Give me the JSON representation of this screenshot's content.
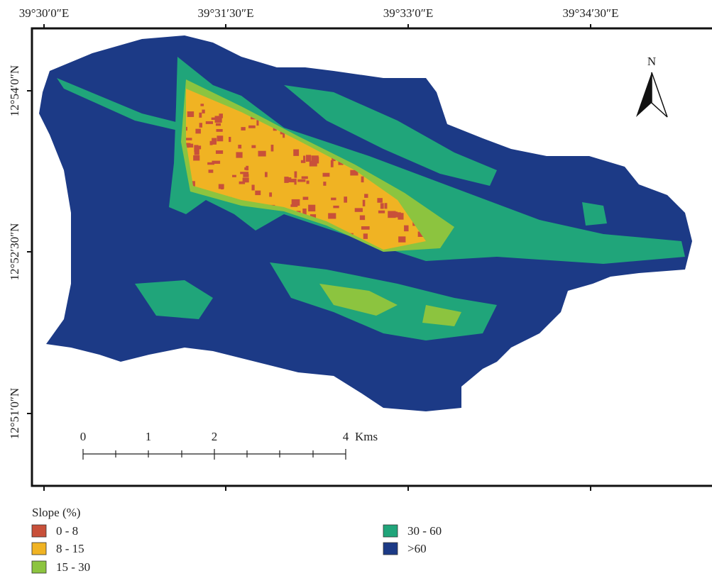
{
  "coordinates": {
    "longitude_labels": [
      "39°30′0″E",
      "39°31′30″E",
      "39°33′0″E",
      "39°34′30″E"
    ],
    "latitude_labels": [
      "12°54′0″N",
      "12°52′30″N",
      "12°51′0″N"
    ]
  },
  "north_arrow": {
    "label": "N"
  },
  "scale_bar": {
    "labels": [
      "0",
      "1",
      "2",
      "4"
    ],
    "unit": "Kms"
  },
  "legend": {
    "title": "Slope (%)",
    "items": [
      {
        "label": "0 - 8",
        "color": "#c8503a"
      },
      {
        "label": "8 - 15",
        "color": "#f0b323"
      },
      {
        "label": "15 - 30",
        "color": "#8cc43f"
      },
      {
        "label": "30 - 60",
        "color": "#20a57a"
      },
      {
        "label": ">60",
        "color": "#1c3a86"
      }
    ]
  }
}
